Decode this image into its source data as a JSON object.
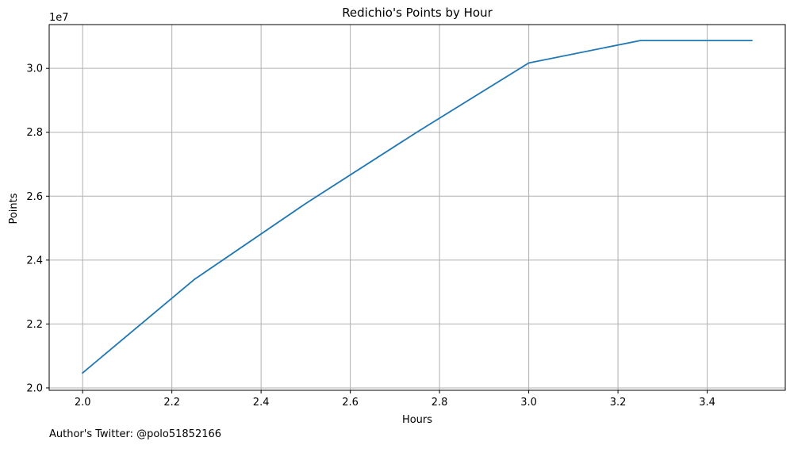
{
  "chart_data": {
    "type": "line",
    "title": "Redichio's Points by Hour",
    "xlabel": "Hours",
    "ylabel": "Points",
    "y_offset_label": "1e7",
    "xlim": [
      1.925,
      3.575
    ],
    "ylim": [
      19925000,
      31370000
    ],
    "xticks": [
      2.0,
      2.2,
      2.4,
      2.6,
      2.8,
      3.0,
      3.2,
      3.4
    ],
    "xtick_labels": [
      "2.0",
      "2.2",
      "2.4",
      "2.6",
      "2.8",
      "3.0",
      "3.2",
      "3.4"
    ],
    "yticks": [
      20000000,
      22000000,
      24000000,
      26000000,
      28000000,
      30000000
    ],
    "ytick_labels": [
      "2.0",
      "2.2",
      "2.4",
      "2.6",
      "2.8",
      "3.0"
    ],
    "grid": true,
    "series": [
      {
        "color": "#1f77b4",
        "x": [
          2.0,
          2.25,
          2.5,
          2.75,
          3.0,
          3.25,
          3.5
        ],
        "y": [
          20470000,
          23390000,
          25770000,
          28010000,
          30170000,
          30870000,
          30870000
        ]
      }
    ]
  },
  "footer": {
    "text": "Author's Twitter: @polo51852166"
  },
  "colors": {
    "grid": "#b0b0b0",
    "axis": "#000000",
    "line": "#1f77b4"
  }
}
